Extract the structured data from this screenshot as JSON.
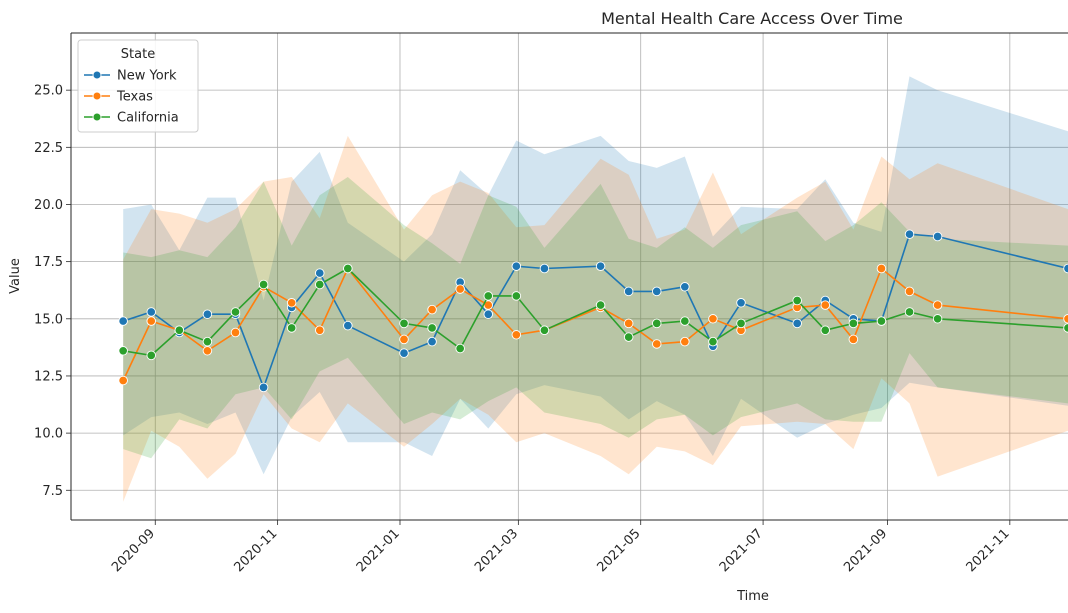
{
  "chart_data": {
    "type": "line",
    "title": "Mental Health Care Access Over Time",
    "xlabel": "Time",
    "ylabel": "Value",
    "xlim": [
      "2020-07-21",
      "2021-11-30"
    ],
    "ylim": [
      6.2,
      27.5
    ],
    "grid": true,
    "legend": {
      "title": "State",
      "placement": "top-left"
    },
    "x_ticks": [
      "2020-09",
      "2020-11",
      "2021-01",
      "2021-03",
      "2021-05",
      "2021-07",
      "2021-09",
      "2021-11"
    ],
    "y_ticks": [
      "7.5",
      "10.0",
      "12.5",
      "15.0",
      "17.5",
      "20.0",
      "22.5",
      "25.0"
    ],
    "series": [
      {
        "name": "New York",
        "color": "#1f77b4",
        "points": [
          {
            "x": "2020-08-16",
            "y": 14.9,
            "lo": 9.9,
            "hi": 19.8
          },
          {
            "x": "2020-08-30",
            "y": 15.3,
            "lo": 10.7,
            "hi": 20.0
          },
          {
            "x": "2020-09-13",
            "y": 14.4,
            "lo": 10.9,
            "hi": 18.0
          },
          {
            "x": "2020-09-27",
            "y": 15.2,
            "lo": 10.4,
            "hi": 20.3
          },
          {
            "x": "2020-10-11",
            "y": 15.2,
            "lo": 10.9,
            "hi": 20.3
          },
          {
            "x": "2020-10-25",
            "y": 12.0,
            "lo": 8.2,
            "hi": 15.8
          },
          {
            "x": "2020-11-08",
            "y": 15.5,
            "lo": 10.7,
            "hi": 21.0
          },
          {
            "x": "2020-11-22",
            "y": 17.0,
            "lo": 11.8,
            "hi": 22.3
          },
          {
            "x": "2020-12-06",
            "y": 14.7,
            "lo": 9.6,
            "hi": 19.2
          },
          {
            "x": "2021-01-03",
            "y": 13.5,
            "lo": 9.6,
            "hi": 17.5
          },
          {
            "x": "2021-01-17",
            "y": 14.0,
            "lo": 9.0,
            "hi": 18.7
          },
          {
            "x": "2021-01-31",
            "y": 16.6,
            "lo": 11.5,
            "hi": 21.5
          },
          {
            "x": "2021-02-14",
            "y": 15.2,
            "lo": 10.2,
            "hi": 20.4
          },
          {
            "x": "2021-02-28",
            "y": 17.3,
            "lo": 11.7,
            "hi": 22.8
          },
          {
            "x": "2021-03-14",
            "y": 17.2,
            "lo": 12.1,
            "hi": 22.2
          },
          {
            "x": "2021-04-11",
            "y": 17.3,
            "lo": 11.6,
            "hi": 23.0
          },
          {
            "x": "2021-04-25",
            "y": 16.2,
            "lo": 10.6,
            "hi": 21.9
          },
          {
            "x": "2021-05-09",
            "y": 16.2,
            "lo": 11.4,
            "hi": 21.6
          },
          {
            "x": "2021-05-23",
            "y": 16.4,
            "lo": 10.8,
            "hi": 22.1
          },
          {
            "x": "2021-06-06",
            "y": 13.8,
            "lo": 9.0,
            "hi": 18.6
          },
          {
            "x": "2021-06-20",
            "y": 15.7,
            "lo": 11.5,
            "hi": 19.9
          },
          {
            "x": "2021-07-18",
            "y": 14.8,
            "lo": 9.8,
            "hi": 19.8
          },
          {
            "x": "2021-08-01",
            "y": 15.8,
            "lo": 10.4,
            "hi": 21.1
          },
          {
            "x": "2021-08-15",
            "y": 15.0,
            "lo": 10.8,
            "hi": 19.2
          },
          {
            "x": "2021-08-29",
            "y": 14.9,
            "lo": 11.1,
            "hi": 18.8
          },
          {
            "x": "2021-09-12",
            "y": 18.7,
            "lo": 12.2,
            "hi": 25.6
          },
          {
            "x": "2021-09-26",
            "y": 18.6,
            "lo": 12.0,
            "hi": 25.0
          },
          {
            "x": "2021-11-30",
            "y": 17.2,
            "lo": 11.2,
            "hi": 23.2
          }
        ]
      },
      {
        "name": "Texas",
        "color": "#ff7f0e",
        "points": [
          {
            "x": "2020-08-16",
            "y": 12.3,
            "lo": 7.0,
            "hi": 17.6
          },
          {
            "x": "2020-08-30",
            "y": 14.9,
            "lo": 10.1,
            "hi": 19.8
          },
          {
            "x": "2020-09-13",
            "y": 14.5,
            "lo": 9.4,
            "hi": 19.6
          },
          {
            "x": "2020-09-27",
            "y": 13.6,
            "lo": 8.0,
            "hi": 19.2
          },
          {
            "x": "2020-10-11",
            "y": 14.4,
            "lo": 9.1,
            "hi": 19.8
          },
          {
            "x": "2020-10-25",
            "y": 16.4,
            "lo": 11.7,
            "hi": 21.0
          },
          {
            "x": "2020-11-08",
            "y": 15.7,
            "lo": 10.2,
            "hi": 21.2
          },
          {
            "x": "2020-11-22",
            "y": 14.5,
            "lo": 9.6,
            "hi": 19.4
          },
          {
            "x": "2020-12-06",
            "y": 17.2,
            "lo": 11.3,
            "hi": 23.0
          },
          {
            "x": "2021-01-03",
            "y": 14.1,
            "lo": 9.4,
            "hi": 18.9
          },
          {
            "x": "2021-01-17",
            "y": 15.4,
            "lo": 10.4,
            "hi": 20.4
          },
          {
            "x": "2021-01-31",
            "y": 16.3,
            "lo": 11.5,
            "hi": 21.0
          },
          {
            "x": "2021-02-14",
            "y": 15.6,
            "lo": 10.8,
            "hi": 20.5
          },
          {
            "x": "2021-02-28",
            "y": 14.3,
            "lo": 9.6,
            "hi": 19.0
          },
          {
            "x": "2021-03-14",
            "y": 14.5,
            "lo": 10.0,
            "hi": 19.1
          },
          {
            "x": "2021-04-11",
            "y": 15.5,
            "lo": 9.0,
            "hi": 22.0
          },
          {
            "x": "2021-04-25",
            "y": 14.8,
            "lo": 8.2,
            "hi": 21.3
          },
          {
            "x": "2021-05-09",
            "y": 13.9,
            "lo": 9.4,
            "hi": 18.5
          },
          {
            "x": "2021-05-23",
            "y": 14.0,
            "lo": 9.2,
            "hi": 18.9
          },
          {
            "x": "2021-06-06",
            "y": 15.0,
            "lo": 8.6,
            "hi": 21.4
          },
          {
            "x": "2021-06-20",
            "y": 14.5,
            "lo": 10.3,
            "hi": 18.7
          },
          {
            "x": "2021-07-18",
            "y": 15.5,
            "lo": 10.5,
            "hi": 20.3
          },
          {
            "x": "2021-08-01",
            "y": 15.6,
            "lo": 10.4,
            "hi": 21.0
          },
          {
            "x": "2021-08-15",
            "y": 14.1,
            "lo": 9.3,
            "hi": 18.9
          },
          {
            "x": "2021-08-29",
            "y": 17.2,
            "lo": 12.4,
            "hi": 22.1
          },
          {
            "x": "2021-09-12",
            "y": 16.2,
            "lo": 11.3,
            "hi": 21.1
          },
          {
            "x": "2021-09-26",
            "y": 15.6,
            "lo": 8.1,
            "hi": 21.8
          },
          {
            "x": "2021-11-30",
            "y": 15.0,
            "lo": 10.1,
            "hi": 19.8
          }
        ]
      },
      {
        "name": "California",
        "color": "#2ca02c",
        "points": [
          {
            "x": "2020-08-16",
            "y": 13.6,
            "lo": 9.3,
            "hi": 17.9
          },
          {
            "x": "2020-08-30",
            "y": 13.4,
            "lo": 8.9,
            "hi": 17.7
          },
          {
            "x": "2020-09-13",
            "y": 14.5,
            "lo": 10.6,
            "hi": 18.0
          },
          {
            "x": "2020-09-27",
            "y": 14.0,
            "lo": 10.2,
            "hi": 17.7
          },
          {
            "x": "2020-10-11",
            "y": 15.3,
            "lo": 11.7,
            "hi": 19.0
          },
          {
            "x": "2020-10-25",
            "y": 16.5,
            "lo": 12.0,
            "hi": 21.0
          },
          {
            "x": "2020-11-08",
            "y": 14.6,
            "lo": 10.6,
            "hi": 18.2
          },
          {
            "x": "2020-11-22",
            "y": 16.5,
            "lo": 12.7,
            "hi": 20.4
          },
          {
            "x": "2020-12-06",
            "y": 17.2,
            "lo": 13.3,
            "hi": 21.2
          },
          {
            "x": "2021-01-03",
            "y": 14.8,
            "lo": 10.4,
            "hi": 19.1
          },
          {
            "x": "2021-01-17",
            "y": 14.6,
            "lo": 10.9,
            "hi": 18.3
          },
          {
            "x": "2021-01-31",
            "y": 13.7,
            "lo": 10.6,
            "hi": 17.4
          },
          {
            "x": "2021-02-14",
            "y": 16.0,
            "lo": 11.4,
            "hi": 20.4
          },
          {
            "x": "2021-02-28",
            "y": 16.0,
            "lo": 12.0,
            "hi": 19.9
          },
          {
            "x": "2021-03-14",
            "y": 14.5,
            "lo": 10.9,
            "hi": 18.1
          },
          {
            "x": "2021-04-11",
            "y": 15.6,
            "lo": 10.4,
            "hi": 20.9
          },
          {
            "x": "2021-04-25",
            "y": 14.2,
            "lo": 9.8,
            "hi": 18.5
          },
          {
            "x": "2021-05-09",
            "y": 14.8,
            "lo": 10.6,
            "hi": 18.1
          },
          {
            "x": "2021-05-23",
            "y": 14.9,
            "lo": 10.8,
            "hi": 19.0
          },
          {
            "x": "2021-06-06",
            "y": 14.0,
            "lo": 9.9,
            "hi": 18.1
          },
          {
            "x": "2021-06-20",
            "y": 14.8,
            "lo": 10.7,
            "hi": 19.1
          },
          {
            "x": "2021-07-18",
            "y": 15.8,
            "lo": 11.3,
            "hi": 19.7
          },
          {
            "x": "2021-08-01",
            "y": 14.5,
            "lo": 10.6,
            "hi": 18.4
          },
          {
            "x": "2021-08-15",
            "y": 14.8,
            "lo": 10.5,
            "hi": 19.1
          },
          {
            "x": "2021-08-29",
            "y": 14.9,
            "lo": 10.5,
            "hi": 20.1
          },
          {
            "x": "2021-09-12",
            "y": 15.3,
            "lo": 13.5,
            "hi": 18.8
          },
          {
            "x": "2021-09-26",
            "y": 15.0,
            "lo": 12.0,
            "hi": 18.5
          },
          {
            "x": "2021-11-30",
            "y": 14.6,
            "lo": 11.3,
            "hi": 18.2
          }
        ]
      }
    ]
  }
}
